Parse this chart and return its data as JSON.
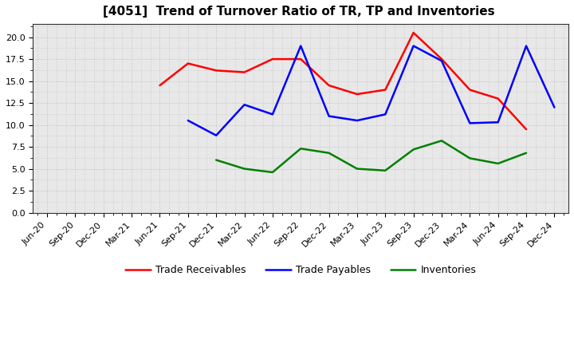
{
  "title": "[4051]  Trend of Turnover Ratio of TR, TP and Inventories",
  "x_labels": [
    "Jun-20",
    "Sep-20",
    "Dec-20",
    "Mar-21",
    "Jun-21",
    "Sep-21",
    "Dec-21",
    "Mar-22",
    "Jun-22",
    "Sep-22",
    "Dec-22",
    "Mar-23",
    "Jun-23",
    "Sep-23",
    "Dec-23",
    "Mar-24",
    "Jun-24",
    "Sep-24",
    "Dec-24"
  ],
  "trade_receivables": [
    null,
    null,
    null,
    null,
    14.5,
    17.0,
    16.2,
    16.0,
    17.5,
    17.5,
    14.5,
    13.5,
    14.0,
    20.5,
    17.5,
    14.0,
    13.0,
    9.5,
    null
  ],
  "trade_payables": [
    null,
    null,
    null,
    null,
    null,
    10.5,
    8.8,
    12.3,
    11.2,
    19.0,
    11.0,
    10.5,
    11.2,
    19.0,
    17.3,
    10.2,
    10.3,
    19.0,
    12.0
  ],
  "inventories": [
    null,
    null,
    null,
    null,
    null,
    null,
    6.0,
    5.0,
    4.6,
    7.3,
    6.8,
    5.0,
    4.8,
    7.2,
    8.2,
    6.2,
    5.6,
    6.8,
    null
  ],
  "ylim": [
    0,
    21.5
  ],
  "yticks": [
    0.0,
    2.5,
    5.0,
    7.5,
    10.0,
    12.5,
    15.0,
    17.5,
    20.0
  ],
  "color_tr": "#ff0000",
  "color_tp": "#0000ff",
  "color_inv": "#008000",
  "bg_color": "#ffffff",
  "plot_bg_color": "#e8e8e8",
  "grid_color": "#bbbbbb",
  "legend_tr": "Trade Receivables",
  "legend_tp": "Trade Payables",
  "legend_inv": "Inventories",
  "title_fontsize": 11,
  "tick_fontsize": 8,
  "legend_fontsize": 9,
  "linewidth": 1.8
}
